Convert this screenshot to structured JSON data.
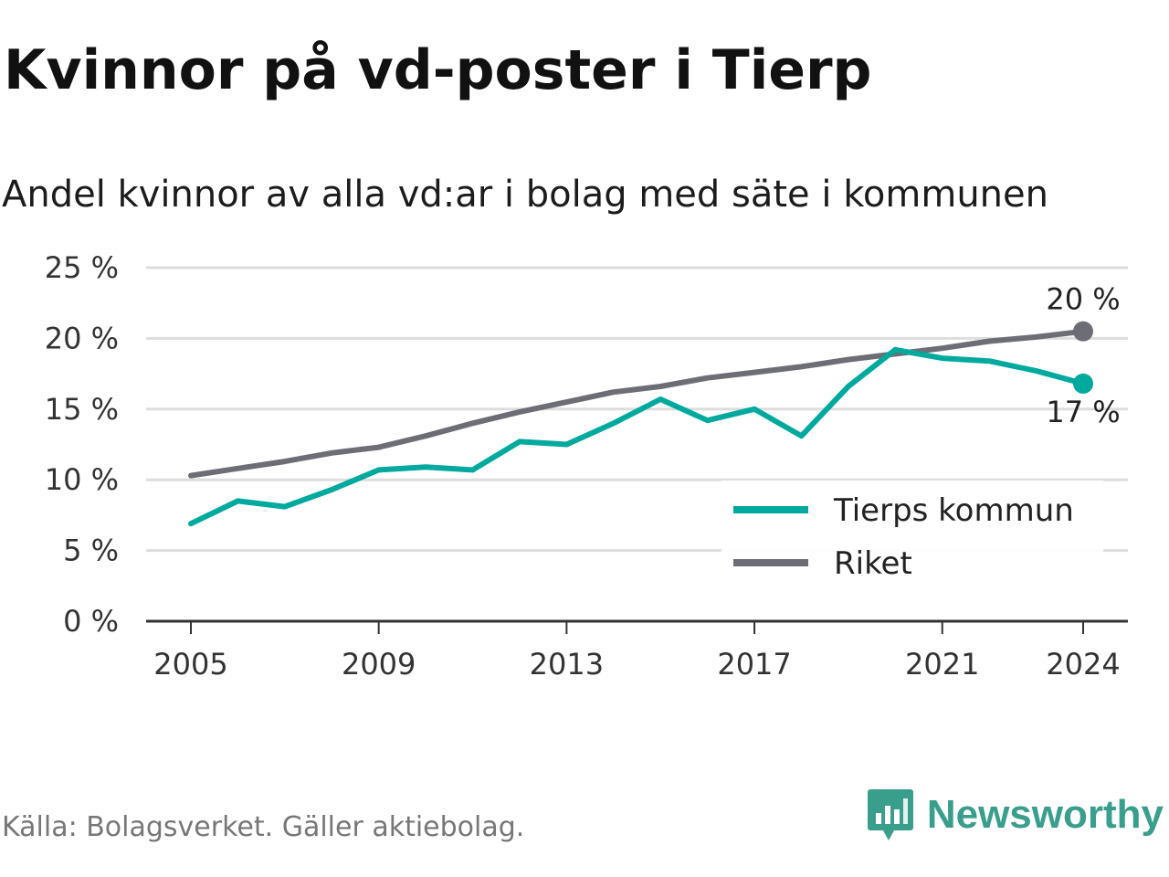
{
  "title": "Kvinnor på vd-poster i Tierp",
  "subtitle": "Andel kvinnor av alla vd:ar i bolag med säte i kommunen",
  "source": "Källa: Bolagsverket. Gäller aktiebolag.",
  "brand": "Newsworthy",
  "chart_data": {
    "type": "line",
    "x": [
      2005,
      2006,
      2007,
      2008,
      2009,
      2010,
      2011,
      2012,
      2013,
      2014,
      2015,
      2016,
      2017,
      2018,
      2019,
      2020,
      2021,
      2022,
      2023,
      2024
    ],
    "series": [
      {
        "name": "Tierps kommun",
        "color": "#00a99d",
        "values": [
          6.9,
          8.5,
          8.1,
          9.3,
          10.7,
          10.9,
          10.7,
          12.7,
          12.5,
          14.0,
          15.7,
          14.2,
          15.0,
          13.1,
          16.6,
          19.2,
          18.6,
          18.4,
          17.7,
          16.8
        ],
        "end_label": "17 %"
      },
      {
        "name": "Riket",
        "color": "#6d6d75",
        "values": [
          10.3,
          10.8,
          11.3,
          11.9,
          12.3,
          13.1,
          14.0,
          14.8,
          15.5,
          16.2,
          16.6,
          17.2,
          17.6,
          18.0,
          18.5,
          18.9,
          19.3,
          19.8,
          20.1,
          20.5
        ],
        "end_label": "20 %"
      }
    ],
    "x_ticks": [
      "2005",
      "2009",
      "2013",
      "2017",
      "2021",
      "2024"
    ],
    "x_tick_values": [
      2005,
      2009,
      2013,
      2017,
      2021,
      2024
    ],
    "y_ticks": [
      "0 %",
      "5 %",
      "10 %",
      "15 %",
      "20 %",
      "25 %"
    ],
    "y_tick_values": [
      0,
      5,
      10,
      15,
      20,
      25
    ],
    "ylim": [
      0,
      25
    ],
    "xlim": [
      2005,
      2024
    ],
    "legend_position": "bottom-right",
    "grid": true
  }
}
